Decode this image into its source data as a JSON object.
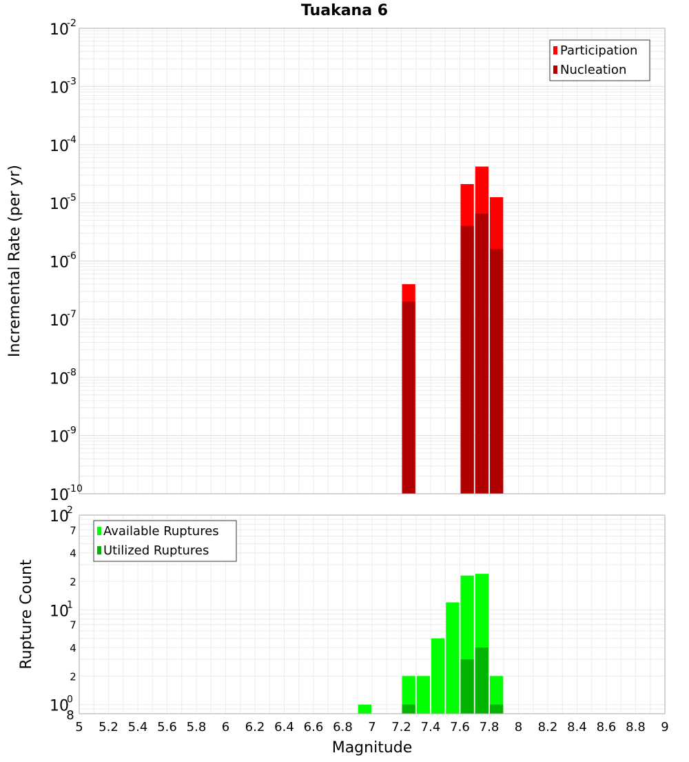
{
  "title": "Tuakana 6",
  "chart_data": [
    {
      "type": "bar",
      "ylabel": "Incremental Rate (per yr)",
      "y_scale": "log",
      "ylim": [
        1e-10,
        0.01
      ],
      "xlim": [
        5,
        9
      ],
      "y_tick_mantissa": [
        "10",
        "10",
        "10",
        "10",
        "10",
        "10",
        "10",
        "10",
        "10"
      ],
      "y_tick_exponents": [
        "-10",
        "-9",
        "-8",
        "-7",
        "-6",
        "-5",
        "-4",
        "-3",
        "-2"
      ],
      "legend": {
        "position": "top-right",
        "entries": [
          {
            "name": "Participation",
            "color": "#ff0000"
          },
          {
            "name": "Nucleation",
            "color": "#b00000"
          }
        ]
      },
      "series": [
        {
          "name": "Participation",
          "color": "#ff0000",
          "x": [
            7.25,
            7.65,
            7.75,
            7.85
          ],
          "values": [
            4e-07,
            2.1e-05,
            4.2e-05,
            1.25e-05
          ]
        },
        {
          "name": "Nucleation",
          "color": "#b00000",
          "x": [
            7.25,
            7.65,
            7.75,
            7.85
          ],
          "values": [
            2e-07,
            4e-06,
            6.5e-06,
            1.6e-06
          ]
        }
      ]
    },
    {
      "type": "bar",
      "ylabel": "Rupture Count",
      "xlabel": "Magnitude",
      "y_scale": "log",
      "ylim": [
        0.8,
        100
      ],
      "xlim": [
        5,
        9
      ],
      "x_ticks": [
        "5",
        "5.2",
        "5.4",
        "5.6",
        "5.8",
        "6",
        "6.2",
        "6.4",
        "6.6",
        "6.8",
        "7",
        "7.2",
        "7.4",
        "7.6",
        "7.8",
        "8",
        "8.2",
        "8.4",
        "8.6",
        "8.8",
        "9"
      ],
      "y_major_mantissa": [
        "10",
        "10",
        "10"
      ],
      "y_major_exponents": [
        "0",
        "1",
        "2"
      ],
      "y_minor_ticks": [
        "8",
        "2",
        "4",
        "7",
        "2",
        "4",
        "7"
      ],
      "legend": {
        "position": "top-left",
        "entries": [
          {
            "name": "Available Ruptures",
            "color": "#00ff00"
          },
          {
            "name": "Utilized Ruptures",
            "color": "#00b400"
          }
        ]
      },
      "series": [
        {
          "name": "Available Ruptures",
          "color": "#00ff00",
          "x": [
            6.95,
            7.25,
            7.35,
            7.45,
            7.55,
            7.65,
            7.75,
            7.85
          ],
          "values": [
            1,
            2,
            2,
            5,
            12,
            23,
            24,
            2
          ]
        },
        {
          "name": "Utilized Ruptures",
          "color": "#00b400",
          "x": [
            7.25,
            7.65,
            7.75,
            7.85
          ],
          "values": [
            1,
            3,
            4,
            1
          ]
        }
      ]
    }
  ]
}
